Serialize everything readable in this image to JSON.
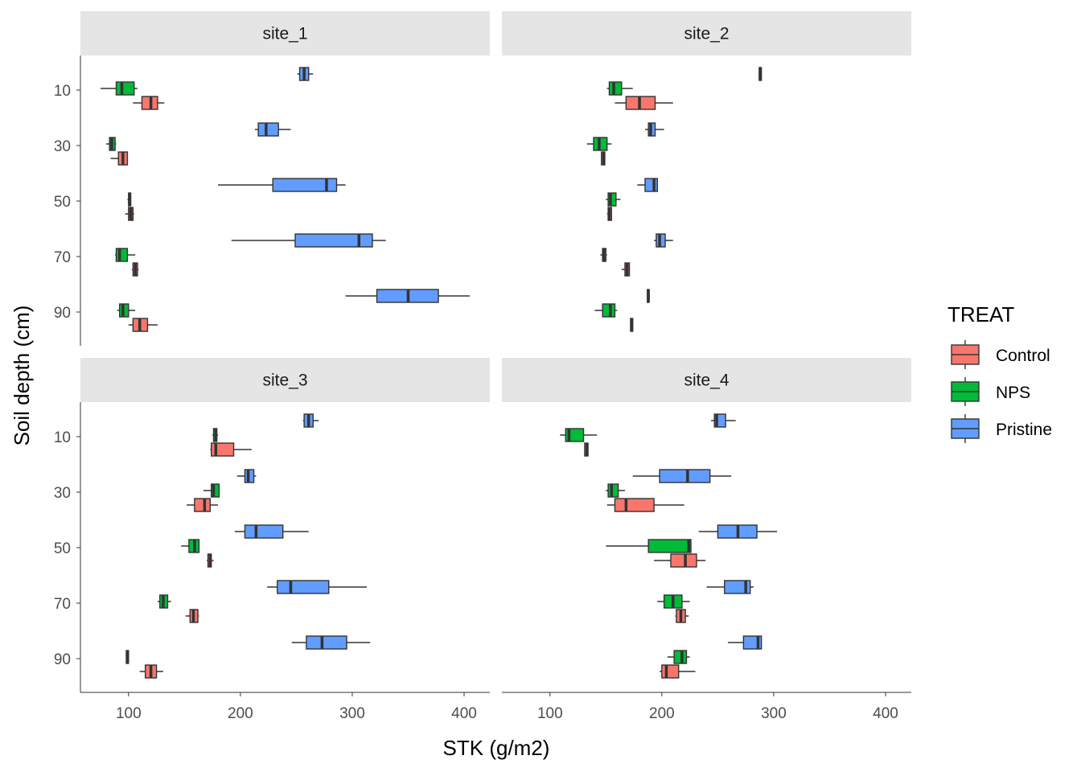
{
  "chart_data": {
    "type": "boxplot",
    "orientation": "horizontal",
    "xlabel": "STK (g/m2)",
    "ylabel": "Soil depth (cm)",
    "xlim": [
      57,
      423
    ],
    "x_ticks": [
      100,
      200,
      300,
      400
    ],
    "y_ticks": [
      10,
      30,
      50,
      70,
      90
    ],
    "legend": {
      "title": "TREAT",
      "position": "right",
      "entries": [
        {
          "label": "Control",
          "color": "#F8766D"
        },
        {
          "label": "NPS",
          "color": "#00BA38"
        },
        {
          "label": "Pristine",
          "color": "#619CFF"
        }
      ]
    },
    "panels": [
      {
        "title": "site_1",
        "boxes": [
          {
            "depth": 10,
            "treat": "Pristine",
            "min": 251,
            "q1": 253,
            "median": 257,
            "q3": 261,
            "max": 265
          },
          {
            "depth": 10,
            "treat": "NPS",
            "min": 75,
            "q1": 89,
            "median": 94,
            "q3": 105,
            "max": 108
          },
          {
            "depth": 10,
            "treat": "Control",
            "min": 104,
            "q1": 112,
            "median": 120,
            "q3": 126,
            "max": 132
          },
          {
            "depth": 30,
            "treat": "Pristine",
            "min": 213,
            "q1": 216,
            "median": 223,
            "q3": 234,
            "max": 245
          },
          {
            "depth": 30,
            "treat": "NPS",
            "min": 80,
            "q1": 83,
            "median": 85,
            "q3": 88,
            "max": 89
          },
          {
            "depth": 30,
            "treat": "Control",
            "min": 84,
            "q1": 91,
            "median": 95,
            "q3": 99,
            "max": 99
          },
          {
            "depth": 50,
            "treat": "Pristine",
            "min": 180,
            "q1": 229,
            "median": 277,
            "q3": 286,
            "max": 294
          },
          {
            "depth": 50,
            "treat": "NPS",
            "min": 99,
            "q1": 100,
            "median": 101,
            "q3": 102,
            "max": 102
          },
          {
            "depth": 50,
            "treat": "Control",
            "min": 97,
            "q1": 100,
            "median": 102,
            "q3": 104,
            "max": 105
          },
          {
            "depth": 70,
            "treat": "Pristine",
            "min": 192,
            "q1": 249,
            "median": 306,
            "q3": 318,
            "max": 330
          },
          {
            "depth": 70,
            "treat": "NPS",
            "min": 88,
            "q1": 89,
            "median": 92,
            "q3": 99,
            "max": 106
          },
          {
            "depth": 70,
            "treat": "Control",
            "min": 103,
            "q1": 104,
            "median": 106,
            "q3": 108,
            "max": 109
          },
          {
            "depth": 90,
            "treat": "Pristine",
            "min": 294,
            "q1": 322,
            "median": 350,
            "q3": 377,
            "max": 405
          },
          {
            "depth": 90,
            "treat": "NPS",
            "min": 90,
            "q1": 92,
            "median": 95,
            "q3": 100,
            "max": 106
          },
          {
            "depth": 90,
            "treat": "Control",
            "min": 100,
            "q1": 104,
            "median": 110,
            "q3": 117,
            "max": 126
          }
        ]
      },
      {
        "title": "site_2",
        "boxes": [
          {
            "depth": 10,
            "treat": "Pristine",
            "min": 287,
            "q1": 287,
            "median": 288,
            "q3": 289,
            "max": 289
          },
          {
            "depth": 10,
            "treat": "NPS",
            "min": 151,
            "q1": 153,
            "median": 157,
            "q3": 164,
            "max": 174
          },
          {
            "depth": 10,
            "treat": "Control",
            "min": 158,
            "q1": 168,
            "median": 180,
            "q3": 194,
            "max": 210
          },
          {
            "depth": 30,
            "treat": "Pristine",
            "min": 185,
            "q1": 188,
            "median": 190,
            "q3": 194,
            "max": 202
          },
          {
            "depth": 30,
            "treat": "NPS",
            "min": 133,
            "q1": 139,
            "median": 144,
            "q3": 151,
            "max": 155
          },
          {
            "depth": 30,
            "treat": "Control",
            "min": 146,
            "q1": 146,
            "median": 148,
            "q3": 149,
            "max": 149
          },
          {
            "depth": 50,
            "treat": "Pristine",
            "min": 178,
            "q1": 185,
            "median": 193,
            "q3": 196,
            "max": 196
          },
          {
            "depth": 50,
            "treat": "NPS",
            "min": 150,
            "q1": 152,
            "median": 154,
            "q3": 159,
            "max": 163
          },
          {
            "depth": 50,
            "treat": "Control",
            "min": 151,
            "q1": 152,
            "median": 153,
            "q3": 155,
            "max": 155
          },
          {
            "depth": 70,
            "treat": "Pristine",
            "min": 193,
            "q1": 195,
            "median": 198,
            "q3": 203,
            "max": 210
          },
          {
            "depth": 70,
            "treat": "NPS",
            "min": 145,
            "q1": 147,
            "median": 148,
            "q3": 150,
            "max": 151
          },
          {
            "depth": 70,
            "treat": "Control",
            "min": 164,
            "q1": 167,
            "median": 169,
            "q3": 171,
            "max": 171
          },
          {
            "depth": 90,
            "treat": "Pristine",
            "min": 187,
            "q1": 187,
            "median": 188,
            "q3": 188,
            "max": 189
          },
          {
            "depth": 90,
            "treat": "NPS",
            "min": 140,
            "q1": 147,
            "median": 154,
            "q3": 158,
            "max": 160
          },
          {
            "depth": 90,
            "treat": "Control",
            "min": 172,
            "q1": 172,
            "median": 173,
            "q3": 174,
            "max": 174
          }
        ]
      },
      {
        "title": "site_3",
        "boxes": [
          {
            "depth": 10,
            "treat": "Pristine",
            "min": 256,
            "q1": 257,
            "median": 261,
            "q3": 265,
            "max": 270
          },
          {
            "depth": 10,
            "treat": "NPS",
            "min": 175,
            "q1": 176,
            "median": 178,
            "q3": 179,
            "max": 180
          },
          {
            "depth": 10,
            "treat": "Control",
            "min": 173,
            "q1": 174,
            "median": 178,
            "q3": 194,
            "max": 210
          },
          {
            "depth": 30,
            "treat": "Pristine",
            "min": 197,
            "q1": 204,
            "median": 207,
            "q3": 212,
            "max": 214
          },
          {
            "depth": 30,
            "treat": "NPS",
            "min": 167,
            "q1": 174,
            "median": 176,
            "q3": 181,
            "max": 181
          },
          {
            "depth": 30,
            "treat": "Control",
            "min": 152,
            "q1": 159,
            "median": 168,
            "q3": 173,
            "max": 180
          },
          {
            "depth": 50,
            "treat": "Pristine",
            "min": 195,
            "q1": 204,
            "median": 214,
            "q3": 238,
            "max": 261
          },
          {
            "depth": 50,
            "treat": "NPS",
            "min": 147,
            "q1": 154,
            "median": 159,
            "q3": 163,
            "max": 163
          },
          {
            "depth": 50,
            "treat": "Control",
            "min": 170,
            "q1": 171,
            "median": 173,
            "q3": 174,
            "max": 176
          },
          {
            "depth": 70,
            "treat": "Pristine",
            "min": 224,
            "q1": 233,
            "median": 245,
            "q3": 279,
            "max": 313
          },
          {
            "depth": 70,
            "treat": "NPS",
            "min": 126,
            "q1": 128,
            "median": 131,
            "q3": 135,
            "max": 138
          },
          {
            "depth": 70,
            "treat": "Control",
            "min": 151,
            "q1": 155,
            "median": 158,
            "q3": 162,
            "max": 163
          },
          {
            "depth": 90,
            "treat": "Pristine",
            "min": 246,
            "q1": 259,
            "median": 273,
            "q3": 295,
            "max": 316
          },
          {
            "depth": 90,
            "treat": "NPS",
            "min": 98,
            "q1": 98,
            "median": 99,
            "q3": 100,
            "max": 100
          },
          {
            "depth": 90,
            "treat": "Control",
            "min": 110,
            "q1": 115,
            "median": 120,
            "q3": 125,
            "max": 131
          }
        ]
      },
      {
        "title": "site_4",
        "boxes": [
          {
            "depth": 10,
            "treat": "Pristine",
            "min": 244,
            "q1": 247,
            "median": 249,
            "q3": 257,
            "max": 266
          },
          {
            "depth": 10,
            "treat": "NPS",
            "min": 109,
            "q1": 114,
            "median": 117,
            "q3": 130,
            "max": 142
          },
          {
            "depth": 10,
            "treat": "Control",
            "min": 131,
            "q1": 131,
            "median": 133,
            "q3": 134,
            "max": 134
          },
          {
            "depth": 30,
            "treat": "Pristine",
            "min": 174,
            "q1": 198,
            "median": 223,
            "q3": 243,
            "max": 262
          },
          {
            "depth": 30,
            "treat": "NPS",
            "min": 150,
            "q1": 152,
            "median": 155,
            "q3": 161,
            "max": 167
          },
          {
            "depth": 30,
            "treat": "Control",
            "min": 151,
            "q1": 158,
            "median": 168,
            "q3": 193,
            "max": 220
          },
          {
            "depth": 50,
            "treat": "Pristine",
            "min": 233,
            "q1": 250,
            "median": 268,
            "q3": 285,
            "max": 303
          },
          {
            "depth": 50,
            "treat": "NPS",
            "min": 150,
            "q1": 188,
            "median": 224,
            "q3": 226,
            "max": 226
          },
          {
            "depth": 50,
            "treat": "Control",
            "min": 193,
            "q1": 208,
            "median": 221,
            "q3": 231,
            "max": 239
          },
          {
            "depth": 70,
            "treat": "Pristine",
            "min": 240,
            "q1": 256,
            "median": 275,
            "q3": 279,
            "max": 282
          },
          {
            "depth": 70,
            "treat": "NPS",
            "min": 196,
            "q1": 202,
            "median": 210,
            "q3": 218,
            "max": 225
          },
          {
            "depth": 70,
            "treat": "Control",
            "min": 212,
            "q1": 213,
            "median": 217,
            "q3": 221,
            "max": 224
          },
          {
            "depth": 90,
            "treat": "Pristine",
            "min": 259,
            "q1": 273,
            "median": 286,
            "q3": 289,
            "max": 289
          },
          {
            "depth": 90,
            "treat": "NPS",
            "min": 205,
            "q1": 211,
            "median": 218,
            "q3": 222,
            "max": 225
          },
          {
            "depth": 90,
            "treat": "Control",
            "min": 198,
            "q1": 200,
            "median": 204,
            "q3": 215,
            "max": 230
          }
        ]
      }
    ]
  }
}
